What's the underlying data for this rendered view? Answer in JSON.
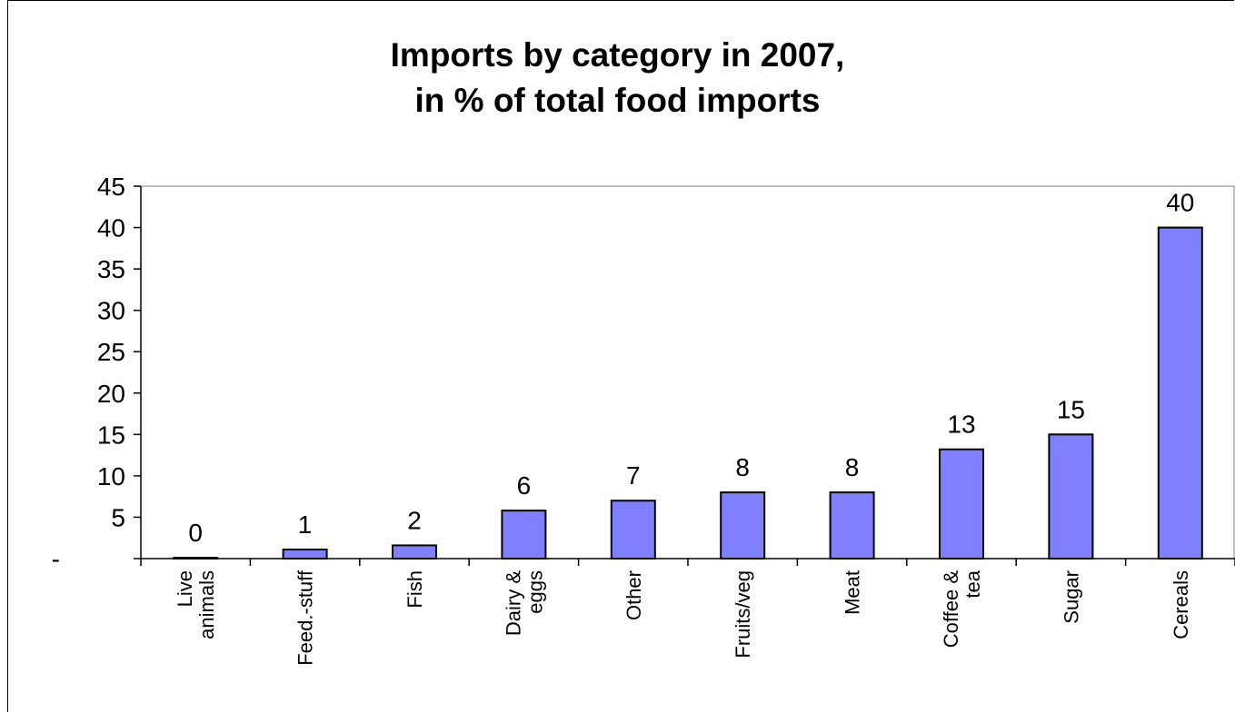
{
  "chart_data": {
    "type": "bar",
    "title_line1": "Imports by category in 2007,",
    "title_line2": "in % of total food imports",
    "categories": [
      "Live animals",
      "Feed.-stuff",
      "Fish",
      "Dairy & eggs",
      "Other",
      "Fruits/veg",
      "Meat",
      "Coffee & tea",
      "Sugar",
      "Cereals"
    ],
    "category_lines": [
      [
        "Live",
        "animals"
      ],
      [
        "Feed.-stuff"
      ],
      [
        "Fish"
      ],
      [
        "Dairy &",
        "eggs"
      ],
      [
        "Other"
      ],
      [
        "Fruits/veg"
      ],
      [
        "Meat"
      ],
      [
        "Coffee &",
        "tea"
      ],
      [
        "Sugar"
      ],
      [
        "Cereals"
      ]
    ],
    "values": [
      0.1,
      1.1,
      1.6,
      5.8,
      7.0,
      8.0,
      8.0,
      13.2,
      15.0,
      40.0
    ],
    "data_labels": [
      "0",
      "1",
      "2",
      "6",
      "7",
      "8",
      "8",
      "13",
      "15",
      "40"
    ],
    "ylim": [
      0,
      45
    ],
    "yticks": [
      0,
      5,
      10,
      15,
      20,
      25,
      30,
      35,
      40,
      45
    ],
    "ytick_labels": [
      "-",
      "5",
      "10",
      "15",
      "20",
      "25",
      "30",
      "35",
      "40",
      "45"
    ],
    "bar_color": "#8080ff",
    "grid": false,
    "legend": "none"
  }
}
